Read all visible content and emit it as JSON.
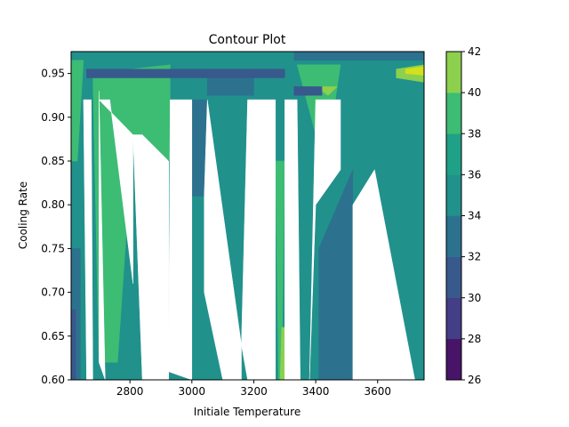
{
  "chart_data": {
    "type": "heatmap",
    "subtype": "filled-contour",
    "title": "Contour Plot",
    "xlabel": "Initiale Temperature",
    "ylabel": "Cooling Rate",
    "xlim": [
      2610,
      3750
    ],
    "ylim": [
      0.6,
      0.975
    ],
    "x_ticks": [
      2800,
      3000,
      3200,
      3400,
      3600
    ],
    "x_tick_labels": [
      "2800",
      "3000",
      "3200",
      "3400",
      "3600"
    ],
    "y_ticks": [
      0.6,
      0.65,
      0.7,
      0.75,
      0.8,
      0.85,
      0.9,
      0.95
    ],
    "y_tick_labels": [
      "0.60",
      "0.65",
      "0.70",
      "0.75",
      "0.80",
      "0.85",
      "0.90",
      "0.95"
    ],
    "colormap": "viridis",
    "levels": [
      26,
      28,
      30,
      32,
      34,
      36,
      38,
      40,
      42
    ],
    "level_labels": [
      "26",
      "28",
      "30",
      "32",
      "34",
      "36",
      "38",
      "40",
      "42"
    ],
    "level_colors": [
      "#481467",
      "#433e85",
      "#38598c",
      "#2c728e",
      "#21918c",
      "#1fa187",
      "#3dbc74",
      "#8cd04e",
      "#d2e11b"
    ],
    "grid": false,
    "colorbar": "right",
    "regions": [
      {
        "level": 4,
        "points": [
          [
            2610,
            0.975
          ],
          [
            3750,
            0.975
          ],
          [
            3750,
            0.6
          ],
          [
            3520,
            0.6
          ],
          [
            3410,
            0.6
          ],
          [
            3380,
            0.6
          ],
          [
            3340,
            0.6
          ],
          [
            3300,
            0.6
          ],
          [
            3270,
            0.6
          ],
          [
            3160,
            0.6
          ],
          [
            3120,
            0.6
          ],
          [
            3040,
            0.6
          ],
          [
            3000,
            0.6
          ],
          [
            2925,
            0.6
          ],
          [
            2880,
            0.6
          ],
          [
            2820,
            0.6
          ],
          [
            2700,
            0.6
          ],
          [
            2670,
            0.6
          ],
          [
            2640,
            0.6
          ],
          [
            2610,
            0.6
          ]
        ]
      },
      {
        "level": 3,
        "points": [
          [
            3330,
            0.975
          ],
          [
            3750,
            0.975
          ],
          [
            3750,
            0.965
          ],
          [
            3330,
            0.965
          ]
        ]
      },
      {
        "level": 3,
        "points": [
          [
            3050,
            0.945
          ],
          [
            3200,
            0.945
          ],
          [
            3200,
            0.925
          ],
          [
            3050,
            0.925
          ]
        ]
      },
      {
        "level": 3,
        "points": [
          [
            3410,
            0.75
          ],
          [
            3520,
            0.84
          ],
          [
            3520,
            0.6
          ],
          [
            3410,
            0.6
          ]
        ]
      },
      {
        "level": 3,
        "points": [
          [
            3000,
            0.92
          ],
          [
            3050,
            0.92
          ],
          [
            3050,
            0.81
          ],
          [
            3000,
            0.81
          ]
        ]
      },
      {
        "level": 3,
        "points": [
          [
            2610,
            0.75
          ],
          [
            2640,
            0.75
          ],
          [
            2640,
            0.6
          ],
          [
            2610,
            0.6
          ]
        ]
      },
      {
        "level": 6,
        "points": [
          [
            2610,
            0.965
          ],
          [
            2650,
            0.965
          ],
          [
            2630,
            0.85
          ],
          [
            2610,
            0.85
          ]
        ]
      },
      {
        "level": 6,
        "points": [
          [
            2680,
            0.95
          ],
          [
            2930,
            0.96
          ],
          [
            2930,
            0.85
          ],
          [
            2810,
            0.88
          ],
          [
            2760,
            0.62
          ],
          [
            2700,
            0.62
          ]
        ]
      },
      {
        "level": 6,
        "points": [
          [
            3340,
            0.96
          ],
          [
            3480,
            0.96
          ],
          [
            3430,
            0.84
          ]
        ]
      },
      {
        "level": 6,
        "points": [
          [
            3270,
            0.85
          ],
          [
            3300,
            0.85
          ],
          [
            3290,
            0.6
          ],
          [
            3280,
            0.6
          ]
        ]
      },
      {
        "level": 7,
        "points": [
          [
            3660,
            0.955
          ],
          [
            3750,
            0.96
          ],
          [
            3750,
            0.94
          ],
          [
            3660,
            0.945
          ]
        ]
      },
      {
        "level": 7,
        "points": [
          [
            3400,
            0.935
          ],
          [
            3470,
            0.935
          ],
          [
            3440,
            0.925
          ]
        ]
      },
      {
        "level": 7,
        "points": [
          [
            3290,
            0.66
          ],
          [
            3300,
            0.66
          ],
          [
            3300,
            0.6
          ],
          [
            3285,
            0.6
          ]
        ]
      },
      {
        "level": 8,
        "points": [
          [
            3690,
            0.955
          ],
          [
            3750,
            0.958
          ],
          [
            3750,
            0.948
          ],
          [
            3690,
            0.95
          ]
        ]
      },
      {
        "level": 2,
        "points": [
          [
            2660,
            0.955
          ],
          [
            3300,
            0.955
          ],
          [
            3300,
            0.945
          ],
          [
            2660,
            0.945
          ]
        ]
      },
      {
        "level": 2,
        "points": [
          [
            3330,
            0.935
          ],
          [
            3420,
            0.935
          ],
          [
            3420,
            0.925
          ],
          [
            3330,
            0.925
          ]
        ]
      },
      {
        "level": 2,
        "points": [
          [
            2610,
            0.68
          ],
          [
            2625,
            0.68
          ],
          [
            2625,
            0.6
          ],
          [
            2610,
            0.6
          ]
        ]
      },
      {
        "level": -1,
        "points": [
          [
            2650,
            0.92
          ],
          [
            2675,
            0.92
          ],
          [
            2680,
            0.6
          ],
          [
            2660,
            0.6
          ]
        ]
      },
      {
        "level": -1,
        "points": [
          [
            2700,
            0.93
          ],
          [
            2720,
            0.6
          ],
          [
            2700,
            0.62
          ]
        ]
      },
      {
        "level": -1,
        "points": [
          [
            2735,
            0.92
          ],
          [
            2810,
            0.71
          ],
          [
            2810,
            0.88
          ],
          [
            2700,
            0.92
          ]
        ]
      },
      {
        "level": -1,
        "points": [
          [
            2840,
            0.6
          ],
          [
            2870,
            0.6
          ],
          [
            2840,
            0.88
          ],
          [
            2810,
            0.88
          ]
        ]
      },
      {
        "level": -1,
        "points": [
          [
            2870,
            0.6
          ],
          [
            2925,
            0.6
          ],
          [
            2925,
            0.85
          ],
          [
            2840,
            0.88
          ]
        ]
      },
      {
        "level": -1,
        "points": [
          [
            2930,
            0.92
          ],
          [
            3000,
            0.92
          ],
          [
            3000,
            0.6
          ],
          [
            2920,
            0.61
          ],
          [
            2925,
            0.62
          ]
        ]
      },
      {
        "level": -1,
        "points": [
          [
            3050,
            0.92
          ],
          [
            3160,
            0.64
          ],
          [
            3160,
            0.6
          ],
          [
            3100,
            0.6
          ],
          [
            3040,
            0.7
          ],
          [
            3040,
            0.81
          ]
        ]
      },
      {
        "level": -1,
        "points": [
          [
            3180,
            0.92
          ],
          [
            3270,
            0.92
          ],
          [
            3270,
            0.6
          ],
          [
            3180,
            0.6
          ],
          [
            3160,
            0.64
          ]
        ]
      },
      {
        "level": -1,
        "points": [
          [
            3300,
            0.92
          ],
          [
            3340,
            0.92
          ],
          [
            3350,
            0.6
          ],
          [
            3300,
            0.6
          ],
          [
            3300,
            0.85
          ]
        ]
      },
      {
        "level": -1,
        "points": [
          [
            3400,
            0.92
          ],
          [
            3480,
            0.92
          ],
          [
            3480,
            0.84
          ],
          [
            3400,
            0.8
          ],
          [
            3380,
            0.6
          ]
        ]
      },
      {
        "level": -1,
        "points": [
          [
            3590,
            0.84
          ],
          [
            3720,
            0.6
          ],
          [
            3520,
            0.6
          ],
          [
            3520,
            0.8
          ]
        ]
      }
    ]
  }
}
